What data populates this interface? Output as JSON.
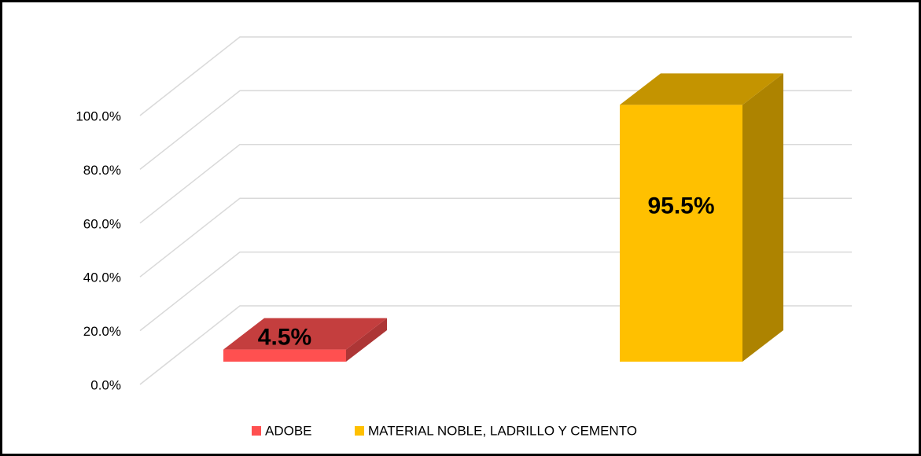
{
  "chart_data": {
    "type": "bar3d",
    "series": [
      {
        "name": "ADOBE",
        "color": "#ff5050",
        "values": [
          4.5
        ],
        "value_labels": [
          "4.5%"
        ]
      },
      {
        "name": "MATERIAL NOBLE, LADRILLO Y CEMENTO",
        "color": "#ffc000",
        "values": [
          95.5
        ],
        "value_labels": [
          "95.5%"
        ]
      }
    ],
    "ylim": [
      0,
      100
    ],
    "yticks": [
      {
        "value": 0,
        "label": "0.0%"
      },
      {
        "value": 20,
        "label": "20.0%"
      },
      {
        "value": 40,
        "label": "40.0%"
      },
      {
        "value": 60,
        "label": "60.0%"
      },
      {
        "value": 80,
        "label": "80.0%"
      },
      {
        "value": 100,
        "label": "100.0%"
      }
    ],
    "grid": true,
    "legend": "bottom"
  }
}
